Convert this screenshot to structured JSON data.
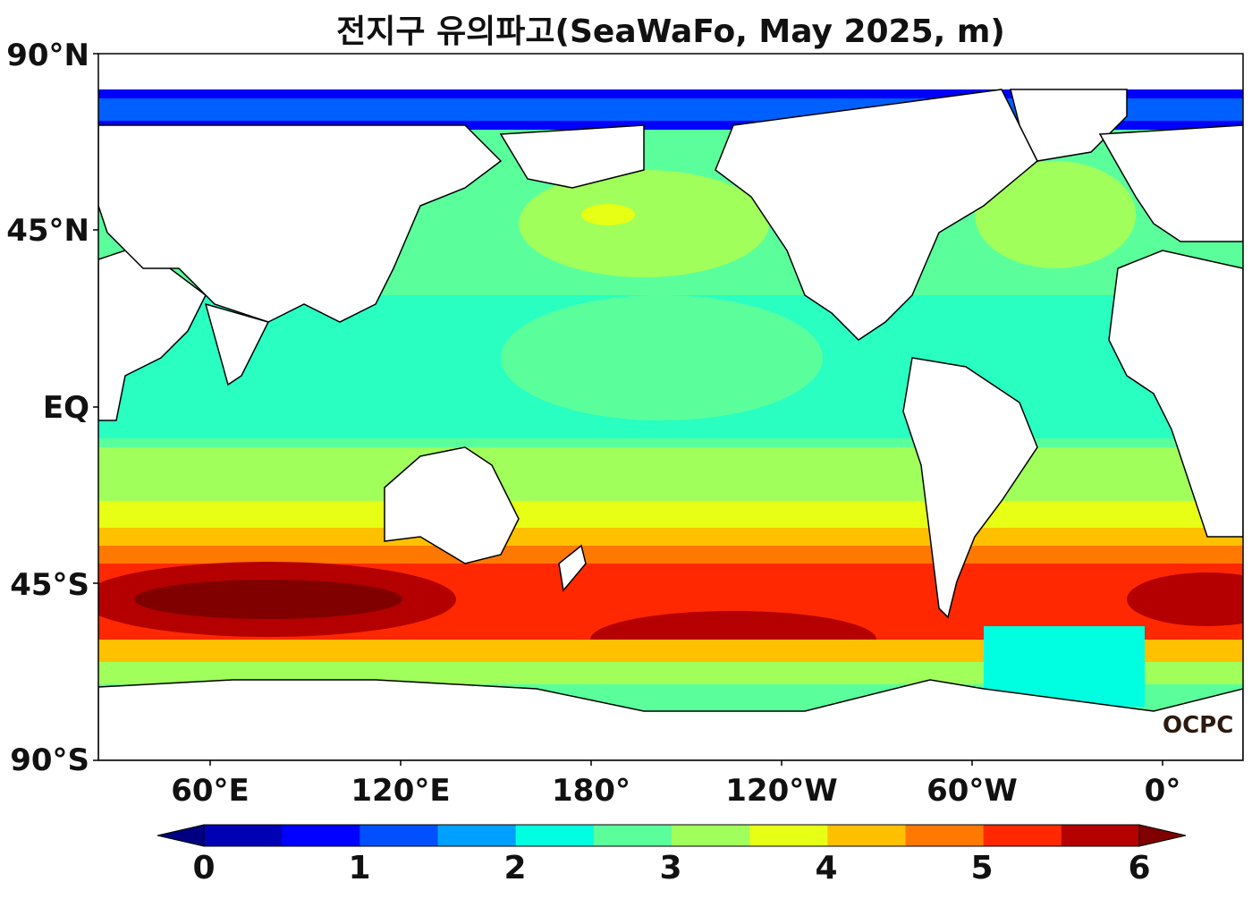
{
  "title": "전지구 유의파고(SeaWaFo, May 2025, m)",
  "axes": {
    "lat_labels": [
      "90°N",
      "45°N",
      "EQ",
      "45°S",
      "90°S"
    ],
    "lon_labels": [
      "60°E",
      "120°E",
      "180°",
      "120°W",
      "60°W",
      "0°"
    ]
  },
  "colorbar": {
    "tick_labels": [
      "0",
      "1",
      "2",
      "3",
      "4",
      "5",
      "6"
    ],
    "levels": [
      0,
      0.5,
      1,
      1.5,
      2,
      2.5,
      3,
      3.5,
      4,
      4.5,
      5,
      5.5,
      6
    ],
    "colors": [
      "#0000b4",
      "#0000ff",
      "#0050ff",
      "#00a0ff",
      "#00ffe0",
      "#5aff9c",
      "#a0ff5a",
      "#e6ff14",
      "#ffc000",
      "#ff7800",
      "#ff2800",
      "#b40000"
    ],
    "under_color": "#000080",
    "over_color": "#800000"
  },
  "logo": "OCPC",
  "colors": {
    "land": "#ffffff",
    "coastline": "#000000"
  }
}
